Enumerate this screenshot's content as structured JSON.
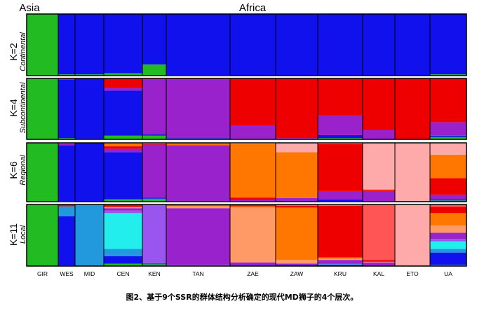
{
  "caption": "图2、基于9个SSR的群体结构分析确定的现代MD狮子的4个层次。",
  "chart_data": {
    "type": "stacked-bar",
    "description_type": "structure-admixture",
    "regions": [
      "Asia",
      "Africa"
    ],
    "populations": [
      "GIR",
      "WES",
      "MID",
      "CEN",
      "KEN",
      "TAN",
      "ZAE",
      "ZAW",
      "KRU",
      "KAL",
      "ETO",
      "UA"
    ],
    "panels": [
      {
        "k": "K=2",
        "level": "Continental",
        "colors": [
          "#22bb22",
          "#1111ee"
        ],
        "pops": [
          [
            1,
            0
          ],
          [
            0.02,
            0.98
          ],
          [
            0.02,
            0.98
          ],
          [
            0.04,
            0.96
          ],
          [
            0.18,
            0.82
          ],
          [
            0.01,
            0.99
          ],
          [
            0,
            1
          ],
          [
            0,
            1
          ],
          [
            0,
            1
          ],
          [
            0,
            1
          ],
          [
            0,
            1
          ],
          [
            0.02,
            0.98
          ]
        ]
      },
      {
        "k": "K=4",
        "level": "Subcontinental",
        "colors": [
          "#22bb22",
          "#1111ee",
          "#9922cc",
          "#ee0000"
        ],
        "pops": [
          [
            1,
            0,
            0,
            0
          ],
          [
            0.02,
            0.96,
            0,
            0.02
          ],
          [
            0.01,
            0.99,
            0,
            0
          ],
          [
            0.06,
            0.74,
            0.04,
            0.16
          ],
          [
            0.06,
            0.02,
            0.9,
            0.02
          ],
          [
            0.01,
            0.01,
            0.96,
            0.02
          ],
          [
            0.01,
            0,
            0.22,
            0.77
          ],
          [
            0,
            0,
            0.02,
            0.98
          ],
          [
            0.02,
            0.05,
            0.32,
            0.61
          ],
          [
            0,
            0,
            0.15,
            0.85
          ],
          [
            0,
            0,
            0.01,
            0.99
          ],
          [
            0.04,
            0.02,
            0.22,
            0.72
          ]
        ]
      },
      {
        "k": "K=6",
        "level": "Regional",
        "colors": [
          "#22bb22",
          "#1111ee",
          "#9922cc",
          "#ee0000",
          "#ff7700",
          "#ffaaaa"
        ],
        "pops": [
          [
            1,
            0,
            0,
            0,
            0,
            0
          ],
          [
            0.01,
            0.95,
            0.02,
            0.01,
            0.01,
            0
          ],
          [
            0,
            1,
            0,
            0,
            0,
            0
          ],
          [
            0.04,
            0.8,
            0.06,
            0.04,
            0.06,
            0
          ],
          [
            0.05,
            0.02,
            0.9,
            0.01,
            0.02,
            0
          ],
          [
            0,
            0.01,
            0.94,
            0.01,
            0.04,
            0
          ],
          [
            0.01,
            0,
            0.02,
            0.04,
            0.91,
            0.02
          ],
          [
            0,
            0,
            0.06,
            0,
            0.78,
            0.16
          ],
          [
            0.01,
            0.03,
            0.14,
            0.8,
            0.01,
            0.01
          ],
          [
            0,
            0,
            0.18,
            0.02,
            0.01,
            0.79
          ],
          [
            0,
            0,
            0,
            0.01,
            0,
            0.99
          ],
          [
            0.02,
            0.02,
            0.08,
            0.28,
            0.4,
            0.2
          ]
        ]
      },
      {
        "k": "K=11",
        "level": "Local",
        "colors": [
          "#22bb22",
          "#1111ee",
          "#2299dd",
          "#22eeee",
          "#9955ee",
          "#9922cc",
          "#ff9966",
          "#ff7700",
          "#ee0000",
          "#ff5555",
          "#ffaaaa"
        ],
        "pops": [
          [
            1,
            0,
            0,
            0,
            0,
            0,
            0,
            0,
            0,
            0,
            0
          ],
          [
            0.01,
            0.8,
            0.16,
            0,
            0,
            0,
            0,
            0,
            0.03,
            0,
            0
          ],
          [
            0,
            0.01,
            0.99,
            0,
            0,
            0,
            0,
            0,
            0,
            0,
            0
          ],
          [
            0.04,
            0.12,
            0.12,
            0.58,
            0.04,
            0.04,
            0.02,
            0,
            0.04,
            0,
            0
          ],
          [
            0.03,
            0.01,
            0.01,
            0,
            0.95,
            0,
            0,
            0,
            0,
            0,
            0
          ],
          [
            0,
            0.01,
            0.01,
            0,
            0,
            0.92,
            0.03,
            0.01,
            0.01,
            0.01,
            0
          ],
          [
            0.01,
            0.01,
            0,
            0,
            0,
            0.04,
            0.89,
            0.02,
            0.02,
            0.01,
            0
          ],
          [
            0,
            0.02,
            0,
            0,
            0,
            0.02,
            0.06,
            0.85,
            0.03,
            0.02,
            0
          ],
          [
            0,
            0.02,
            0.01,
            0,
            0.01,
            0.06,
            0.02,
            0.02,
            0.84,
            0.01,
            0.01
          ],
          [
            0,
            0.01,
            0,
            0,
            0,
            0.05,
            0.01,
            0,
            0.03,
            0.9,
            0
          ],
          [
            0,
            0,
            0,
            0,
            0,
            0,
            0,
            0,
            0.01,
            0,
            0.99
          ],
          [
            0.02,
            0.2,
            0.06,
            0.12,
            0.04,
            0.1,
            0.12,
            0.2,
            0.1,
            0.04,
            0
          ]
        ]
      }
    ]
  }
}
